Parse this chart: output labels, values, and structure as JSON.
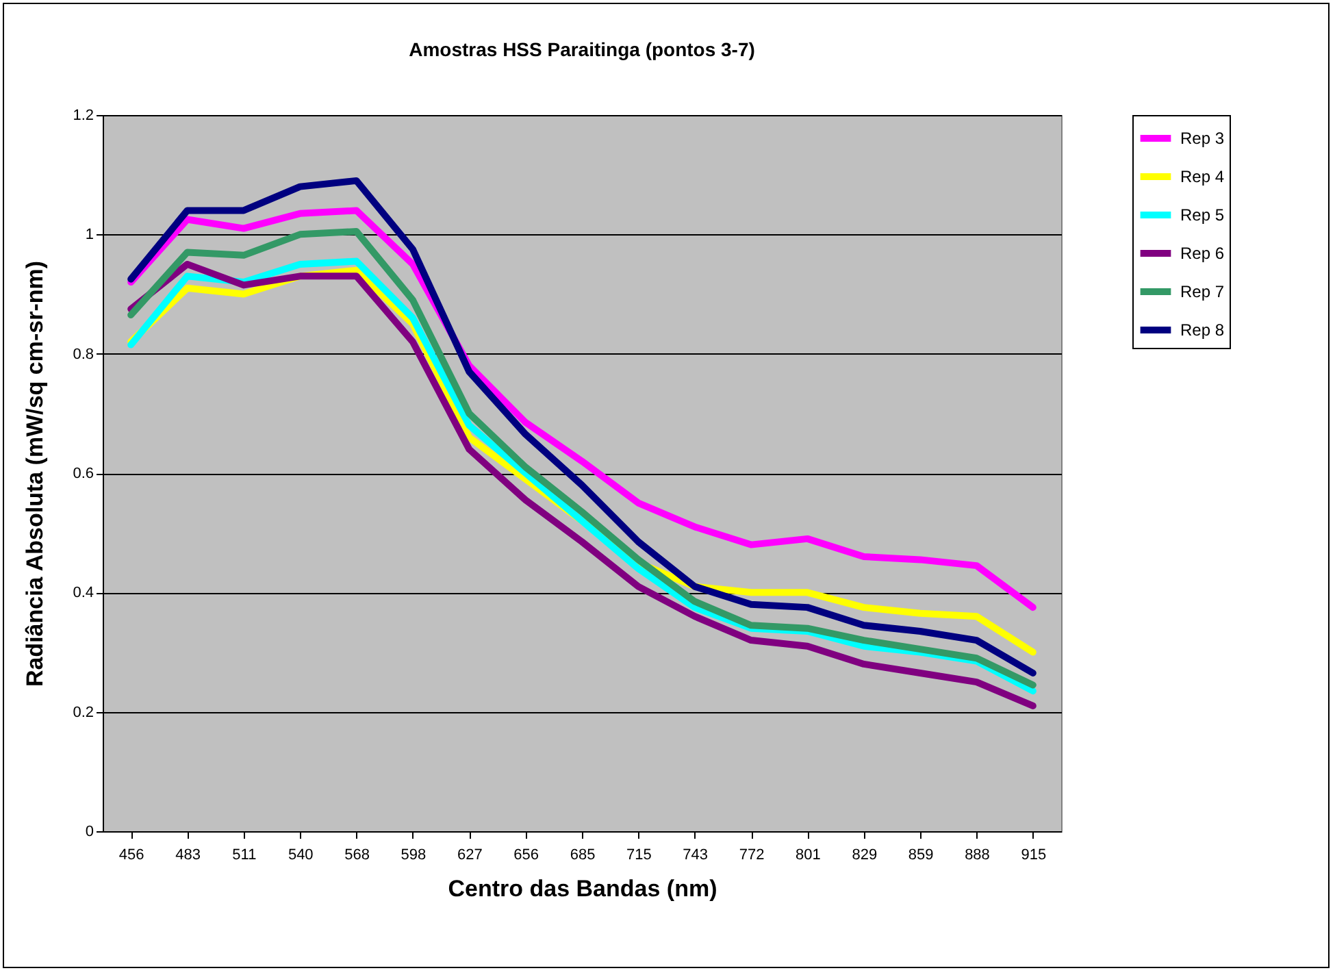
{
  "chart_data": {
    "type": "line",
    "title": "Amostras HSS Paraitinga (pontos 3-7)",
    "xlabel": "Centro das Bandas (nm)",
    "ylabel": "Radiância Absoluta (mW/sq cm-sr-nm)",
    "categories": [
      "456",
      "483",
      "511",
      "540",
      "568",
      "598",
      "627",
      "656",
      "685",
      "715",
      "743",
      "772",
      "801",
      "829",
      "859",
      "888",
      "915"
    ],
    "ylim": [
      0,
      1.2
    ],
    "yticks": [
      0,
      0.2,
      0.4,
      0.6,
      0.8,
      1,
      1.2
    ],
    "grid": "y",
    "legend": "right",
    "marker": "none",
    "line_style": "solid",
    "series": [
      {
        "name": "Rep 3",
        "color": "#ff00ff",
        "values": [
          0.92,
          1.025,
          1.01,
          1.035,
          1.04,
          0.95,
          0.78,
          0.685,
          0.62,
          0.55,
          0.51,
          0.48,
          0.49,
          0.46,
          0.455,
          0.445,
          0.375
        ]
      },
      {
        "name": "Rep 4",
        "color": "#ffff00",
        "values": [
          0.82,
          0.91,
          0.9,
          0.93,
          0.94,
          0.85,
          0.66,
          0.59,
          0.52,
          0.45,
          0.41,
          0.4,
          0.4,
          0.375,
          0.365,
          0.36,
          0.3
        ]
      },
      {
        "name": "Rep 5",
        "color": "#00ffff",
        "values": [
          0.815,
          0.93,
          0.92,
          0.95,
          0.955,
          0.86,
          0.68,
          0.6,
          0.52,
          0.44,
          0.375,
          0.34,
          0.335,
          0.31,
          0.3,
          0.285,
          0.235
        ]
      },
      {
        "name": "Rep 6",
        "color": "#800080",
        "values": [
          0.875,
          0.95,
          0.915,
          0.93,
          0.93,
          0.82,
          0.64,
          0.555,
          0.485,
          0.41,
          0.36,
          0.32,
          0.31,
          0.28,
          0.265,
          0.25,
          0.21
        ]
      },
      {
        "name": "Rep 7",
        "color": "#339966",
        "values": [
          0.865,
          0.97,
          0.965,
          1.0,
          1.005,
          0.89,
          0.7,
          0.61,
          0.535,
          0.455,
          0.385,
          0.345,
          0.34,
          0.32,
          0.305,
          0.29,
          0.245
        ]
      },
      {
        "name": "Rep 8",
        "color": "#000080",
        "values": [
          0.925,
          1.04,
          1.04,
          1.08,
          1.09,
          0.975,
          0.77,
          0.665,
          0.58,
          0.485,
          0.41,
          0.38,
          0.375,
          0.345,
          0.335,
          0.32,
          0.265
        ]
      }
    ]
  }
}
